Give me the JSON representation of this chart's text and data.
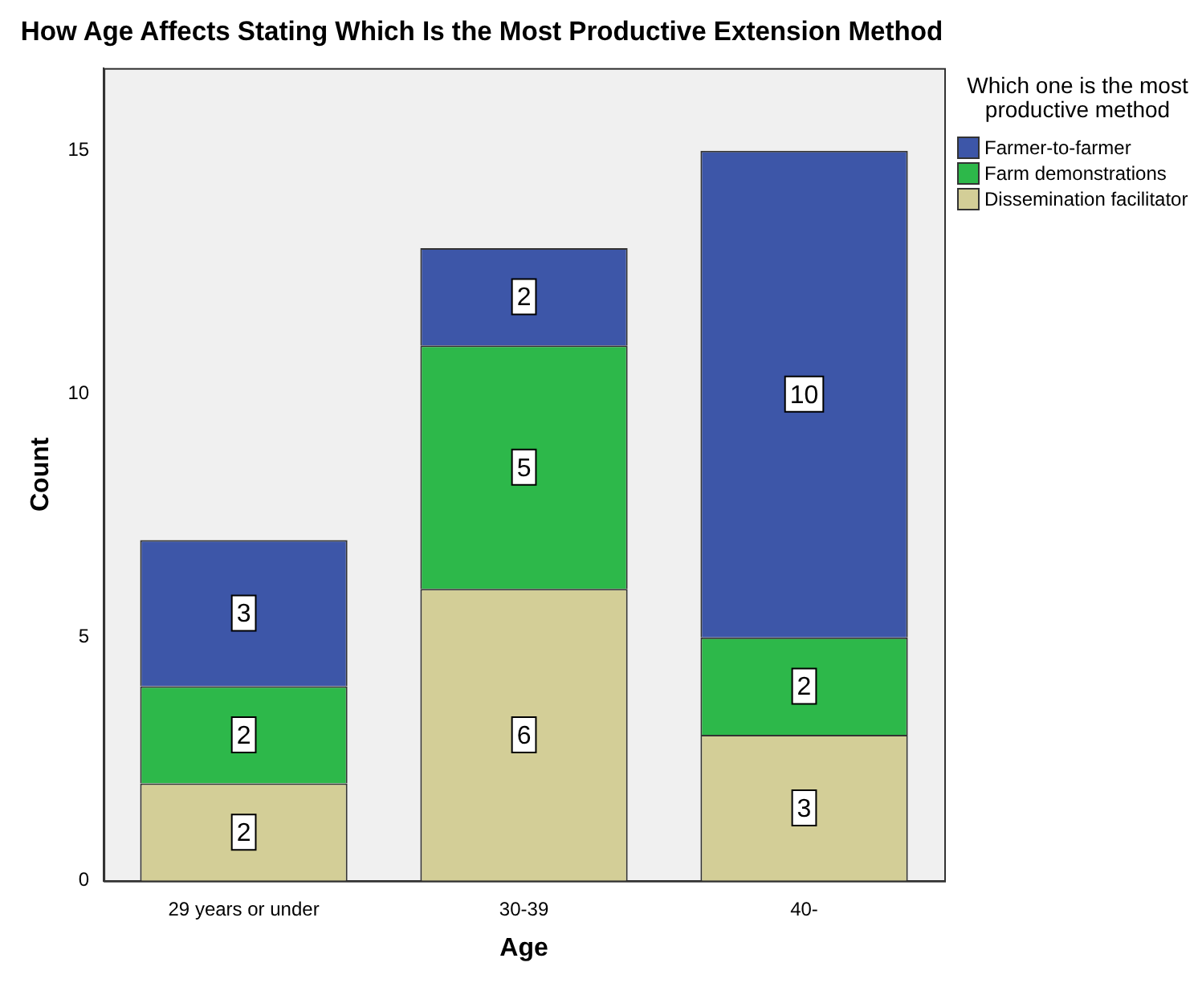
{
  "chart_data": {
    "type": "bar",
    "title": "How Age Affects Stating Which Is the Most Productive Extension Method",
    "xlabel": "Age",
    "ylabel": "Count",
    "legend_title": "Which one is the most productive method",
    "categories": [
      "29 years or under",
      "30-39",
      "40-"
    ],
    "stacked": true,
    "series": [
      {
        "name": "Dissemination facilitator",
        "color": "#d3ce97",
        "values": [
          2,
          6,
          3
        ]
      },
      {
        "name": "Farm demonstrations",
        "color": "#2db84a",
        "values": [
          2,
          5,
          2
        ]
      },
      {
        "name": "Farmer-to-farmer",
        "color": "#3d56a8",
        "values": [
          3,
          2,
          10
        ]
      }
    ],
    "ylim": [
      0,
      16.7
    ],
    "yticks": [
      0,
      5,
      10,
      15
    ],
    "grid": false,
    "legend": "right",
    "data_labels": true
  }
}
